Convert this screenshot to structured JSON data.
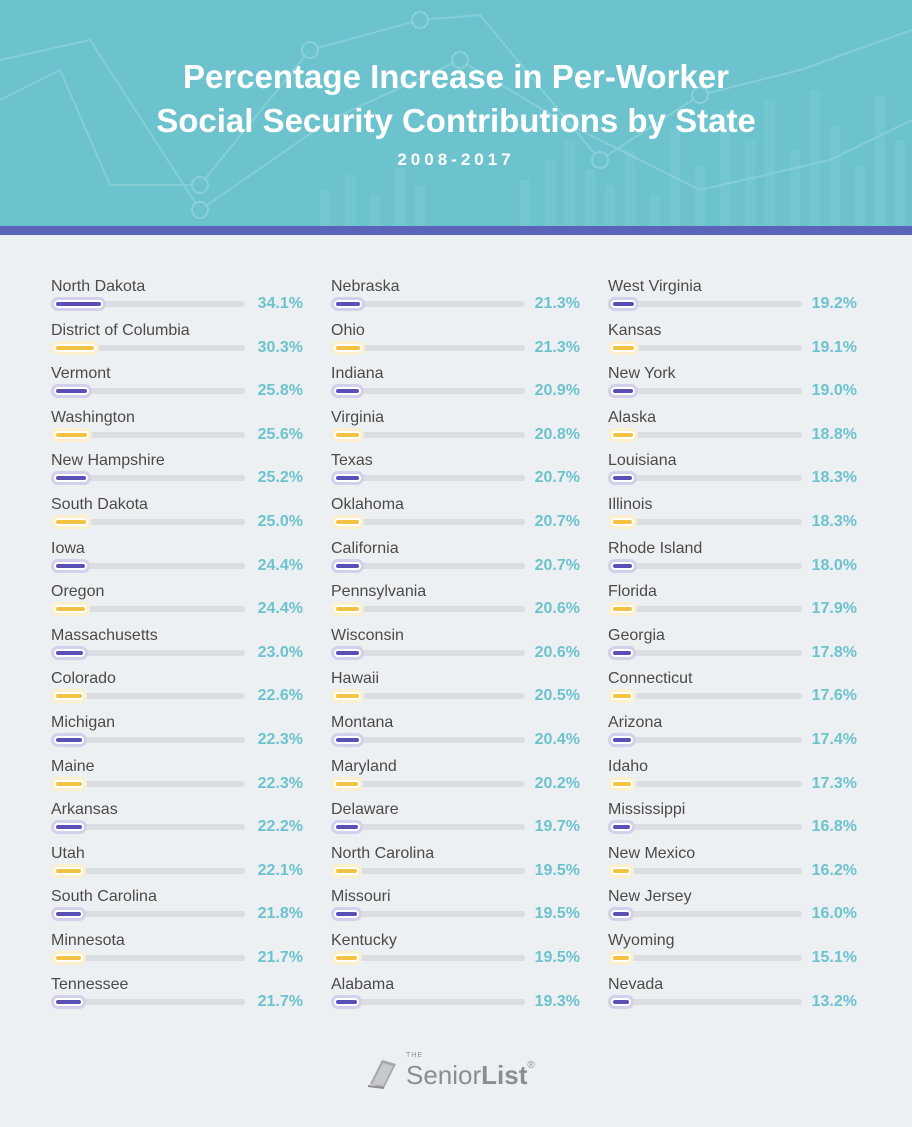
{
  "header": {
    "title_line1": "Percentage Increase in Per-Worker",
    "title_line2": "Social Security Contributions by State",
    "subtitle": "2008-2017"
  },
  "colors": {
    "header_bg": "#6cc3ce",
    "band": "#5b64b8",
    "purple": "#5b50b5",
    "yellow": "#f3c243",
    "pct_text": "#6cc3ce",
    "track": "#dadde2"
  },
  "logo": {
    "small": "THE",
    "name_regular": "Senior",
    "name_bold": "List",
    "mark": "®",
    "icon": "book-icon"
  },
  "chart_data": {
    "type": "bar",
    "title": "Percentage Increase in Per-Worker Social Security Contributions by State",
    "subtitle": "2008-2017",
    "xlim": [
      0,
      40
    ],
    "columns": [
      [
        {
          "state": "North Dakota",
          "value": 34.1,
          "label": "34.1%"
        },
        {
          "state": "District of Columbia",
          "value": 30.3,
          "label": "30.3%"
        },
        {
          "state": "Vermont",
          "value": 25.8,
          "label": "25.8%"
        },
        {
          "state": "Washington",
          "value": 25.6,
          "label": "25.6%"
        },
        {
          "state": "New Hampshire",
          "value": 25.2,
          "label": "25.2%"
        },
        {
          "state": "South Dakota",
          "value": 25.0,
          "label": "25.0%"
        },
        {
          "state": "Iowa",
          "value": 24.4,
          "label": "24.4%"
        },
        {
          "state": "Oregon",
          "value": 24.4,
          "label": "24.4%"
        },
        {
          "state": "Massachusetts",
          "value": 23.0,
          "label": "23.0%"
        },
        {
          "state": "Colorado",
          "value": 22.6,
          "label": "22.6%"
        },
        {
          "state": "Michigan",
          "value": 22.3,
          "label": "22.3%"
        },
        {
          "state": "Maine",
          "value": 22.3,
          "label": "22.3%"
        },
        {
          "state": "Arkansas",
          "value": 22.2,
          "label": "22.2%"
        },
        {
          "state": "Utah",
          "value": 22.1,
          "label": "22.1%"
        },
        {
          "state": "South Carolina",
          "value": 21.8,
          "label": "21.8%"
        },
        {
          "state": "Minnesota",
          "value": 21.7,
          "label": "21.7%"
        },
        {
          "state": "Tennessee",
          "value": 21.7,
          "label": "21.7%"
        }
      ],
      [
        {
          "state": "Nebraska",
          "value": 21.3,
          "label": "21.3%"
        },
        {
          "state": "Ohio",
          "value": 21.3,
          "label": "21.3%"
        },
        {
          "state": "Indiana",
          "value": 20.9,
          "label": "20.9%"
        },
        {
          "state": "Virginia",
          "value": 20.8,
          "label": "20.8%"
        },
        {
          "state": "Texas",
          "value": 20.7,
          "label": "20.7%"
        },
        {
          "state": "Oklahoma",
          "value": 20.7,
          "label": "20.7%"
        },
        {
          "state": "California",
          "value": 20.7,
          "label": "20.7%"
        },
        {
          "state": "Pennsylvania",
          "value": 20.6,
          "label": "20.6%"
        },
        {
          "state": "Wisconsin",
          "value": 20.6,
          "label": "20.6%"
        },
        {
          "state": "Hawaii",
          "value": 20.5,
          "label": "20.5%"
        },
        {
          "state": "Montana",
          "value": 20.4,
          "label": "20.4%"
        },
        {
          "state": "Maryland",
          "value": 20.2,
          "label": "20.2%"
        },
        {
          "state": "Delaware",
          "value": 19.7,
          "label": "19.7%"
        },
        {
          "state": "North Carolina",
          "value": 19.5,
          "label": "19.5%"
        },
        {
          "state": "Missouri",
          "value": 19.5,
          "label": "19.5%"
        },
        {
          "state": "Kentucky",
          "value": 19.5,
          "label": "19.5%"
        },
        {
          "state": "Alabama",
          "value": 19.3,
          "label": "19.3%"
        }
      ],
      [
        {
          "state": "West Virginia",
          "value": 19.2,
          "label": "19.2%"
        },
        {
          "state": "Kansas",
          "value": 19.1,
          "label": "19.1%"
        },
        {
          "state": "New York",
          "value": 19.0,
          "label": "19.0%"
        },
        {
          "state": "Alaska",
          "value": 18.8,
          "label": "18.8%"
        },
        {
          "state": "Louisiana",
          "value": 18.3,
          "label": "18.3%"
        },
        {
          "state": "Illinois",
          "value": 18.3,
          "label": "18.3%"
        },
        {
          "state": "Rhode Island",
          "value": 18.0,
          "label": "18.0%"
        },
        {
          "state": "Florida",
          "value": 17.9,
          "label": "17.9%"
        },
        {
          "state": "Georgia",
          "value": 17.8,
          "label": "17.8%"
        },
        {
          "state": "Connecticut",
          "value": 17.6,
          "label": "17.6%"
        },
        {
          "state": "Arizona",
          "value": 17.4,
          "label": "17.4%"
        },
        {
          "state": "Idaho",
          "value": 17.3,
          "label": "17.3%"
        },
        {
          "state": "Mississippi",
          "value": 16.8,
          "label": "16.8%"
        },
        {
          "state": "New Mexico",
          "value": 16.2,
          "label": "16.2%"
        },
        {
          "state": "New Jersey",
          "value": 16.0,
          "label": "16.0%"
        },
        {
          "state": "Wyoming",
          "value": 15.1,
          "label": "15.1%"
        },
        {
          "state": "Nevada",
          "value": 13.2,
          "label": "13.2%"
        }
      ]
    ]
  }
}
